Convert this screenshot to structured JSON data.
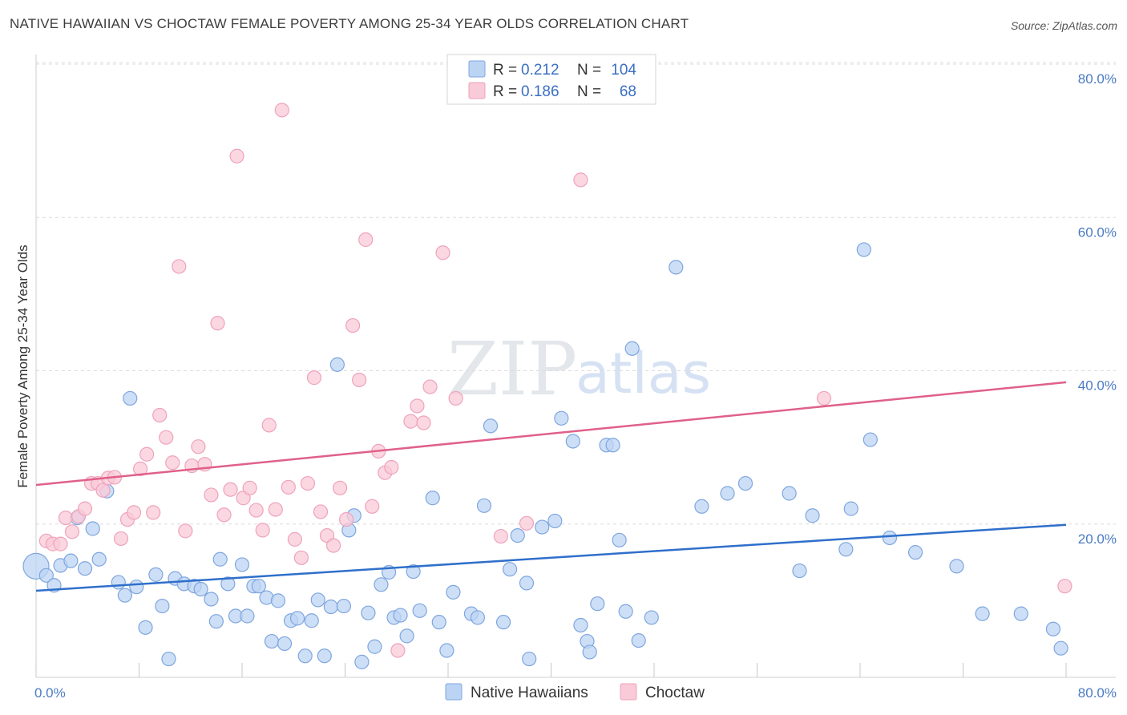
{
  "title": "NATIVE HAWAIIAN VS CHOCTAW FEMALE POVERTY AMONG 25-34 YEAR OLDS CORRELATION CHART",
  "source": "Source: ZipAtlas.com",
  "watermark": {
    "zip": "ZIP",
    "atlas": "atlas"
  },
  "colors": {
    "blue_fill": "#bcd4f4",
    "blue_stroke": "#7fa6de",
    "blue_line": "#2f6fcb",
    "pink_fill": "#f9cad8",
    "pink_stroke": "#eea3bb",
    "pink_line": "#e0608a",
    "grid": "#dcdcdc",
    "axis_text": "#4a7bc4"
  },
  "legend": {
    "rows": [
      {
        "r_label": "R =",
        "r_value": "0.212",
        "n_label": "N =",
        "n_value": "104"
      },
      {
        "r_label": "R =",
        "r_value": "0.186",
        "n_label": "N =",
        "n_value": "68"
      }
    ]
  },
  "bottom_legend": [
    "Native Hawaiians",
    "Choctaw"
  ],
  "chart_data": {
    "type": "scatter",
    "title": "NATIVE HAWAIIAN VS CHOCTAW FEMALE POVERTY AMONG 25-34 YEAR OLDS CORRELATION CHART",
    "xlabel": "",
    "ylabel": "Female Poverty Among 25-34 Year Olds",
    "xlim": [
      0,
      80
    ],
    "ylim": [
      0,
      80
    ],
    "x_tick_labels": [
      "0.0%",
      "80.0%"
    ],
    "y_tick_labels": [
      "20.0%",
      "40.0%",
      "60.0%",
      "80.0%"
    ],
    "y_ticks": [
      20,
      40,
      60,
      80
    ],
    "grid": true,
    "legend_position": "top-center",
    "series": [
      {
        "name": "Native Hawaiians",
        "color": "#bcd4f4",
        "trend": {
          "x": [
            0,
            80
          ],
          "y": [
            11.3,
            19.9
          ]
        },
        "points": [
          [
            0.0,
            14.5
          ],
          [
            0.8,
            13.3
          ],
          [
            1.4,
            12.0
          ],
          [
            1.9,
            14.6
          ],
          [
            2.7,
            15.2
          ],
          [
            3.2,
            20.8
          ],
          [
            3.8,
            14.2
          ],
          [
            4.4,
            19.4
          ],
          [
            4.9,
            15.4
          ],
          [
            5.5,
            24.3
          ],
          [
            6.4,
            12.4
          ],
          [
            6.9,
            10.7
          ],
          [
            7.3,
            36.4
          ],
          [
            7.8,
            11.8
          ],
          [
            8.5,
            6.5
          ],
          [
            9.3,
            13.4
          ],
          [
            9.8,
            9.3
          ],
          [
            10.3,
            2.4
          ],
          [
            10.8,
            12.9
          ],
          [
            11.5,
            12.2
          ],
          [
            12.3,
            11.9
          ],
          [
            12.8,
            11.5
          ],
          [
            13.6,
            10.2
          ],
          [
            14.0,
            7.3
          ],
          [
            14.3,
            15.4
          ],
          [
            14.9,
            12.2
          ],
          [
            15.5,
            8.0
          ],
          [
            16.0,
            14.7
          ],
          [
            16.4,
            8.0
          ],
          [
            16.9,
            11.9
          ],
          [
            17.3,
            11.9
          ],
          [
            17.9,
            10.4
          ],
          [
            18.3,
            4.7
          ],
          [
            18.8,
            10.0
          ],
          [
            19.3,
            4.4
          ],
          [
            19.8,
            7.4
          ],
          [
            20.3,
            7.7
          ],
          [
            20.9,
            2.8
          ],
          [
            21.4,
            7.4
          ],
          [
            21.9,
            10.1
          ],
          [
            22.4,
            2.8
          ],
          [
            22.9,
            9.2
          ],
          [
            23.4,
            40.8
          ],
          [
            23.9,
            9.3
          ],
          [
            24.3,
            19.2
          ],
          [
            24.7,
            21.1
          ],
          [
            25.3,
            2.0
          ],
          [
            25.8,
            8.4
          ],
          [
            26.3,
            4.0
          ],
          [
            26.8,
            12.1
          ],
          [
            27.4,
            13.7
          ],
          [
            27.8,
            7.8
          ],
          [
            28.3,
            8.1
          ],
          [
            28.8,
            5.4
          ],
          [
            29.3,
            13.8
          ],
          [
            29.8,
            8.7
          ],
          [
            30.8,
            23.4
          ],
          [
            31.3,
            7.2
          ],
          [
            31.9,
            3.5
          ],
          [
            32.4,
            11.1
          ],
          [
            33.8,
            8.3
          ],
          [
            34.3,
            7.8
          ],
          [
            34.8,
            22.4
          ],
          [
            35.3,
            32.8
          ],
          [
            36.3,
            7.2
          ],
          [
            36.8,
            14.1
          ],
          [
            37.4,
            18.5
          ],
          [
            38.1,
            12.3
          ],
          [
            38.3,
            2.4
          ],
          [
            39.3,
            19.6
          ],
          [
            40.3,
            20.4
          ],
          [
            40.8,
            33.8
          ],
          [
            41.7,
            30.8
          ],
          [
            42.3,
            6.8
          ],
          [
            42.8,
            4.7
          ],
          [
            43.0,
            3.3
          ],
          [
            43.6,
            9.6
          ],
          [
            44.3,
            30.3
          ],
          [
            44.8,
            30.3
          ],
          [
            45.3,
            17.9
          ],
          [
            45.8,
            8.6
          ],
          [
            46.3,
            42.9
          ],
          [
            46.8,
            4.8
          ],
          [
            47.8,
            7.8
          ],
          [
            49.7,
            53.5
          ],
          [
            51.7,
            22.3
          ],
          [
            53.7,
            24.0
          ],
          [
            55.1,
            25.3
          ],
          [
            58.5,
            24.0
          ],
          [
            59.3,
            13.9
          ],
          [
            60.3,
            21.1
          ],
          [
            62.9,
            16.7
          ],
          [
            63.3,
            22.0
          ],
          [
            64.3,
            55.8
          ],
          [
            64.8,
            31.0
          ],
          [
            66.3,
            18.2
          ],
          [
            68.3,
            16.3
          ],
          [
            71.5,
            14.5
          ],
          [
            73.5,
            8.3
          ],
          [
            76.5,
            8.3
          ],
          [
            79.0,
            6.3
          ],
          [
            79.6,
            3.8
          ]
        ]
      },
      {
        "name": "Choctaw",
        "color": "#f9cad8",
        "trend": {
          "x": [
            0,
            80
          ],
          "y": [
            25.1,
            38.5
          ]
        },
        "points": [
          [
            0.8,
            17.8
          ],
          [
            1.3,
            17.4
          ],
          [
            1.9,
            17.4
          ],
          [
            2.3,
            20.8
          ],
          [
            2.8,
            19.0
          ],
          [
            3.3,
            21.0
          ],
          [
            3.8,
            22.0
          ],
          [
            4.3,
            25.3
          ],
          [
            4.8,
            25.3
          ],
          [
            5.2,
            24.4
          ],
          [
            5.6,
            26.0
          ],
          [
            6.1,
            26.1
          ],
          [
            6.6,
            18.1
          ],
          [
            7.1,
            20.6
          ],
          [
            7.6,
            21.5
          ],
          [
            8.1,
            27.2
          ],
          [
            8.6,
            29.1
          ],
          [
            9.1,
            21.5
          ],
          [
            9.6,
            34.2
          ],
          [
            10.1,
            31.3
          ],
          [
            10.6,
            28.0
          ],
          [
            11.1,
            53.6
          ],
          [
            11.6,
            19.1
          ],
          [
            12.1,
            27.6
          ],
          [
            12.6,
            30.1
          ],
          [
            13.1,
            27.8
          ],
          [
            13.6,
            23.8
          ],
          [
            14.1,
            46.2
          ],
          [
            14.6,
            21.2
          ],
          [
            15.1,
            24.5
          ],
          [
            15.6,
            68.0
          ],
          [
            16.1,
            23.4
          ],
          [
            16.6,
            24.7
          ],
          [
            17.1,
            21.8
          ],
          [
            17.6,
            19.2
          ],
          [
            18.1,
            32.9
          ],
          [
            18.6,
            21.9
          ],
          [
            19.1,
            74.0
          ],
          [
            19.6,
            24.8
          ],
          [
            20.1,
            18.0
          ],
          [
            20.6,
            15.6
          ],
          [
            21.1,
            25.3
          ],
          [
            21.6,
            39.1
          ],
          [
            22.1,
            21.6
          ],
          [
            22.6,
            18.5
          ],
          [
            23.1,
            17.2
          ],
          [
            23.6,
            24.7
          ],
          [
            24.1,
            20.6
          ],
          [
            24.6,
            45.9
          ],
          [
            25.1,
            38.8
          ],
          [
            25.6,
            57.1
          ],
          [
            26.1,
            22.3
          ],
          [
            26.6,
            29.5
          ],
          [
            27.1,
            26.7
          ],
          [
            27.6,
            27.4
          ],
          [
            28.1,
            3.5
          ],
          [
            29.1,
            33.4
          ],
          [
            29.6,
            35.4
          ],
          [
            30.1,
            33.2
          ],
          [
            30.6,
            37.9
          ],
          [
            31.6,
            55.4
          ],
          [
            32.6,
            36.4
          ],
          [
            36.1,
            18.4
          ],
          [
            38.1,
            20.1
          ],
          [
            42.3,
            64.9
          ],
          [
            61.2,
            36.4
          ],
          [
            79.9,
            11.9
          ]
        ]
      }
    ]
  }
}
